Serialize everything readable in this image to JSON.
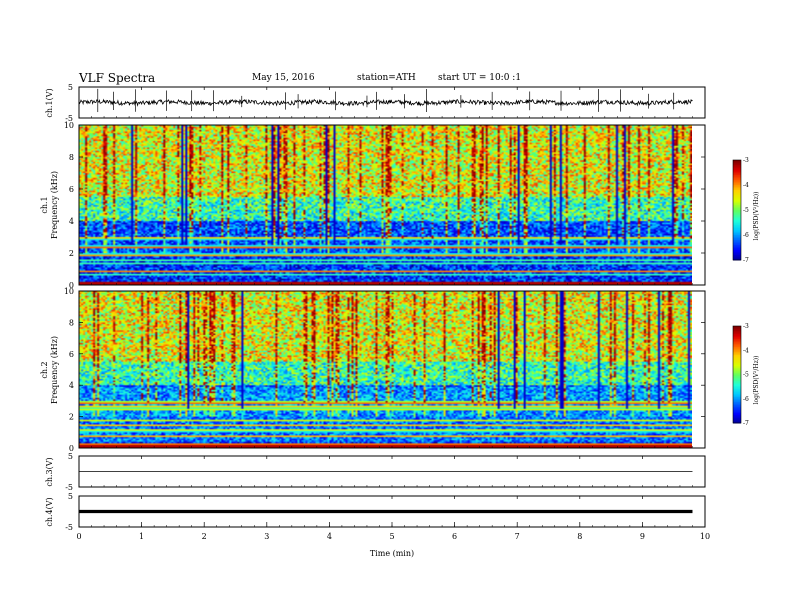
{
  "header": {
    "title": "VLF Spectra",
    "date": "May 15, 2016",
    "station": "station=ATH",
    "start": "start UT = 10:0 :1"
  },
  "chart_data": [
    {
      "type": "line",
      "name": "ch1-waveform",
      "ylabel": "ch.1(V)",
      "ylim": [
        -5,
        5
      ],
      "yticks": [
        "5",
        "-5"
      ],
      "xlim": [
        0,
        10
      ],
      "baseline": 0,
      "noise_amplitude": 0.7,
      "spikes": [
        0.3,
        0.55,
        0.9,
        1.4,
        1.8,
        2.15,
        2.6,
        3.3,
        3.5,
        4.1,
        4.6,
        4.75,
        5.2,
        5.55,
        6.1,
        6.6,
        7.2,
        7.7,
        8.3,
        8.65,
        9.1,
        9.5
      ]
    },
    {
      "type": "heatmap",
      "name": "ch1-spectrogram",
      "ylabel": "ch.1",
      "ylabel2": "Frequency (kHz)",
      "ylim": [
        0,
        10
      ],
      "yticks": [
        "0",
        "2",
        "4",
        "6",
        "8",
        "10"
      ],
      "xlim": [
        0,
        9.8
      ],
      "colorbar": {
        "label": "log(PSD(V²/Hz))",
        "range": [
          -7,
          -3
        ],
        "ticks": [
          "-3",
          "-4",
          "-5",
          "-6",
          "-7"
        ]
      }
    },
    {
      "type": "heatmap",
      "name": "ch2-spectrogram",
      "ylabel": "ch.2",
      "ylabel2": "Frequency (kHz)",
      "ylim": [
        0,
        10
      ],
      "yticks": [
        "0",
        "2",
        "4",
        "6",
        "8",
        "10"
      ],
      "xlim": [
        0,
        9.8
      ],
      "colorbar": {
        "label": "log(PSD(V²/Hz))",
        "range": [
          -7,
          -3
        ],
        "ticks": [
          "-3",
          "-4",
          "-5",
          "-6",
          "-7"
        ]
      }
    },
    {
      "type": "line",
      "name": "ch3-waveform",
      "ylabel": "ch.3(V)",
      "ylim": [
        -5,
        5
      ],
      "yticks": [
        "5",
        "-5"
      ],
      "xlim": [
        0,
        10
      ],
      "baseline": 0
    },
    {
      "type": "line",
      "name": "ch4-waveform",
      "ylabel": "ch.4(V)",
      "ylim": [
        -5,
        5
      ],
      "yticks": [
        "5",
        "-5"
      ],
      "xlim": [
        0,
        10
      ],
      "baseline": 0
    }
  ],
  "xaxis": {
    "label": "Time (min)",
    "ticks": [
      "0",
      "1",
      "2",
      "3",
      "4",
      "5",
      "6",
      "7",
      "8",
      "9",
      "10"
    ],
    "range": [
      0,
      10
    ]
  },
  "colors": {
    "colormap": [
      "#00008f",
      "#0000ff",
      "#0060ff",
      "#00c8ff",
      "#20ffd8",
      "#60ff60",
      "#d8ff00",
      "#ffd000",
      "#ff6000",
      "#e00000",
      "#800000"
    ],
    "line": "#000000"
  }
}
